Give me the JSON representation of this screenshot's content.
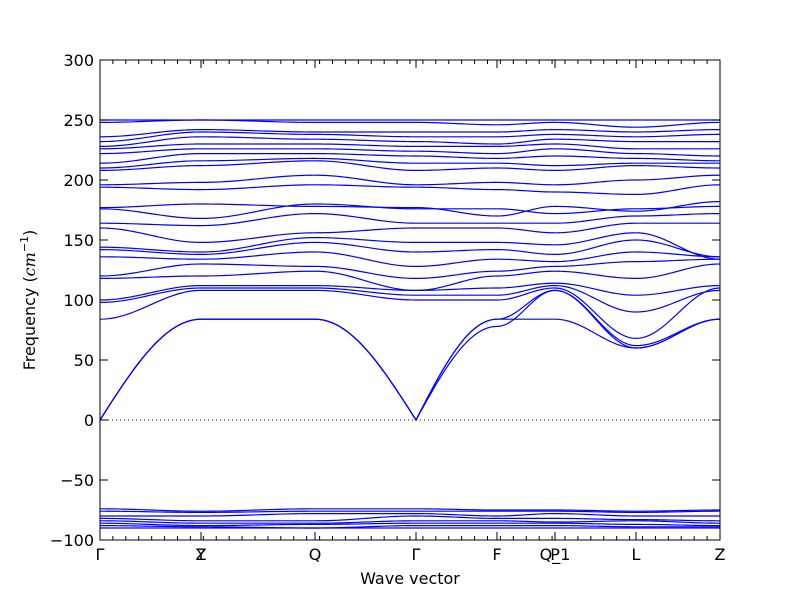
{
  "chart_data": {
    "type": "line",
    "xlabel": "Wave vector",
    "ylabel_text": "Frequency (",
    "ylabel_unit": "cm",
    "ylabel_exp": "−1",
    "ylabel_close": ")",
    "ylim": [
      -100,
      300
    ],
    "yticks": [
      -100,
      -50,
      0,
      50,
      100,
      150,
      200,
      250,
      300
    ],
    "ytick_labels": [
      "−100",
      "−50",
      "0",
      "50",
      "100",
      "150",
      "200",
      "250",
      "300"
    ],
    "xlim": [
      0,
      1
    ],
    "high_symmetry_points": [
      {
        "label": "Γ",
        "x": 0.0
      },
      {
        "label": "Y",
        "x": 0.1629
      },
      {
        "label": "Z",
        "x": 0.1629
      },
      {
        "label": "Q",
        "x": 0.3468
      },
      {
        "label": "Γ",
        "x": 0.5097
      },
      {
        "label": "F",
        "x": 0.6403
      },
      {
        "label": "P",
        "x": 0.7339
      },
      {
        "label": "Q_1",
        "x": 0.7339
      },
      {
        "label": "L",
        "x": 0.8645
      },
      {
        "label": "Z",
        "x": 1.0
      }
    ],
    "zero_line": 0,
    "line_color": "#0000ff",
    "band_nodes_x": [
      0.0,
      0.1629,
      0.3468,
      0.5097,
      0.6403,
      0.7339,
      0.8645,
      1.0
    ],
    "series": [
      {
        "values": [
          0,
          84,
          84,
          0,
          78,
          108,
          62,
          84
        ]
      },
      {
        "values": [
          0,
          84,
          84,
          0,
          84,
          108,
          60,
          84
        ]
      },
      {
        "values": [
          0,
          84,
          84,
          0,
          84,
          84,
          60,
          84
        ]
      },
      {
        "values": [
          84,
          108,
          108,
          100,
          100,
          110,
          68,
          110
        ]
      },
      {
        "values": [
          98,
          110,
          110,
          104,
          104,
          112,
          90,
          108
        ]
      },
      {
        "values": [
          100,
          112,
          112,
          108,
          110,
          114,
          104,
          112
        ]
      },
      {
        "values": [
          118,
          120,
          124,
          108,
          120,
          124,
          118,
          130
        ]
      },
      {
        "values": [
          120,
          130,
          128,
          118,
          124,
          128,
          132,
          134
        ]
      },
      {
        "values": [
          136,
          134,
          140,
          128,
          134,
          132,
          140,
          136
        ]
      },
      {
        "values": [
          142,
          138,
          148,
          140,
          142,
          138,
          150,
          136
        ]
      },
      {
        "values": [
          144,
          140,
          152,
          148,
          148,
          146,
          156,
          134
        ]
      },
      {
        "values": [
          160,
          148,
          156,
          160,
          160,
          156,
          164,
          164
        ]
      },
      {
        "values": [
          164,
          162,
          172,
          164,
          164,
          164,
          170,
          172
        ]
      },
      {
        "values": [
          176,
          168,
          180,
          176,
          176,
          172,
          176,
          178
        ]
      },
      {
        "values": [
          177,
          180,
          178,
          177,
          170,
          178,
          174,
          182
        ]
      },
      {
        "values": [
          194,
          192,
          196,
          194,
          192,
          190,
          188,
          196
        ]
      },
      {
        "values": [
          196,
          198,
          204,
          196,
          198,
          196,
          200,
          204
        ]
      },
      {
        "values": [
          208,
          212,
          216,
          208,
          210,
          208,
          212,
          210
        ]
      },
      {
        "values": [
          210,
          216,
          218,
          214,
          214,
          212,
          214,
          214
        ]
      },
      {
        "values": [
          214,
          222,
          222,
          220,
          218,
          220,
          218,
          216
        ]
      },
      {
        "values": [
          222,
          226,
          226,
          224,
          222,
          226,
          222,
          220
        ]
      },
      {
        "values": [
          226,
          230,
          230,
          228,
          228,
          230,
          226,
          226
        ]
      },
      {
        "values": [
          228,
          236,
          234,
          232,
          230,
          234,
          232,
          232
        ]
      },
      {
        "values": [
          232,
          240,
          238,
          236,
          236,
          238,
          236,
          238
        ]
      },
      {
        "values": [
          236,
          242,
          240,
          240,
          240,
          242,
          240,
          242
        ]
      },
      {
        "values": [
          248,
          250,
          248,
          248,
          246,
          248,
          244,
          248
        ]
      },
      {
        "values": [
          250,
          250,
          250,
          250,
          250,
          250,
          250,
          250
        ]
      },
      {
        "values": [
          -74,
          -76,
          -74,
          -74,
          -75,
          -75,
          -76,
          -75
        ]
      },
      {
        "values": [
          -76,
          -77,
          -76,
          -76,
          -76,
          -76,
          -77,
          -76
        ]
      },
      {
        "values": [
          -80,
          -80,
          -78,
          -78,
          -80,
          -78,
          -80,
          -80
        ]
      },
      {
        "values": [
          -82,
          -84,
          -84,
          -80,
          -82,
          -82,
          -83,
          -84
        ]
      },
      {
        "values": [
          -84,
          -86,
          -86,
          -84,
          -84,
          -85,
          -84,
          -86
        ]
      },
      {
        "values": [
          -86,
          -88,
          -87,
          -86,
          -86,
          -86,
          -87,
          -88
        ]
      },
      {
        "values": [
          -88,
          -89,
          -90,
          -88,
          -88,
          -88,
          -89,
          -89
        ]
      },
      {
        "values": [
          -90,
          -90,
          -90,
          -90,
          -90,
          -90,
          -90,
          -90
        ]
      }
    ]
  }
}
